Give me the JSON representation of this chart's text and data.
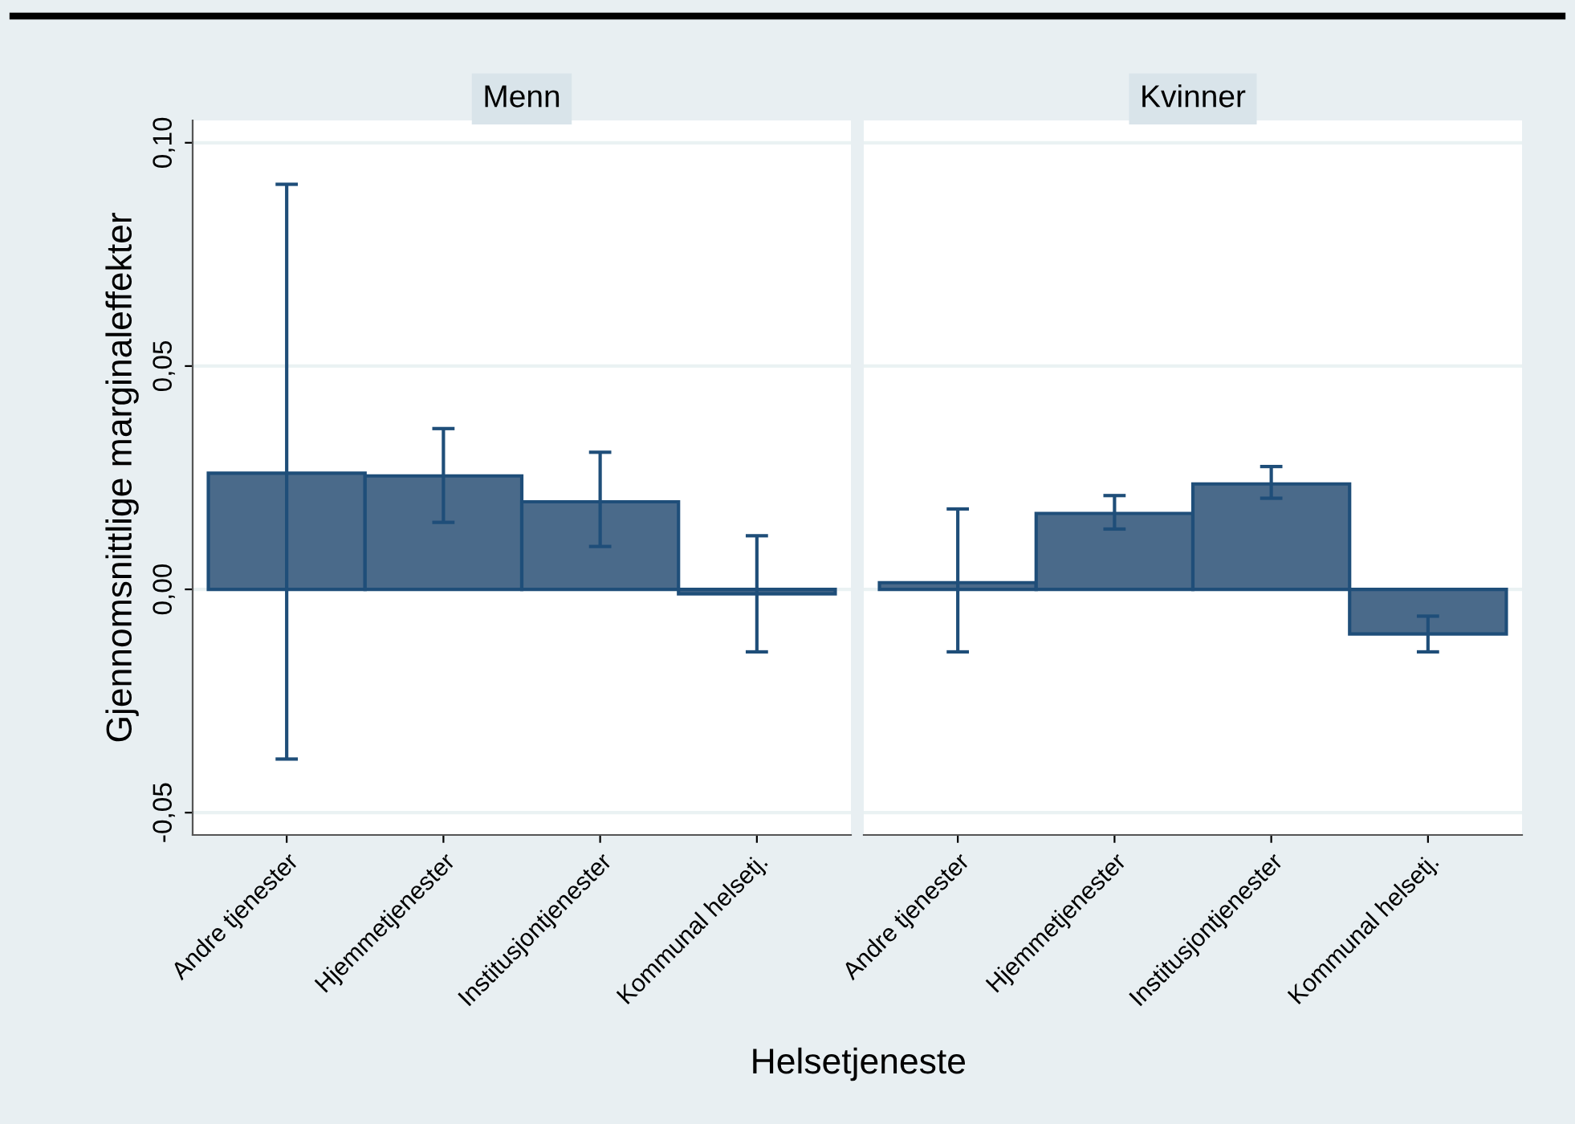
{
  "chart_data": [
    {
      "type": "bar",
      "title": "Menn",
      "ylabel": "Gjennomsnittlige marginaleffekter",
      "xlabel": "Helsetjeneste",
      "categories": [
        "Andre tjenester",
        "Hjemmetjenester",
        "Institusjontjenester",
        "Kommunal helsetj."
      ],
      "values": [
        0.026,
        0.0254,
        0.0196,
        -0.001
      ],
      "errors": [
        [
          -0.038,
          0.0907
        ],
        [
          0.015,
          0.036
        ],
        [
          0.0096,
          0.0307
        ],
        [
          -0.014,
          0.012
        ]
      ],
      "color": "#4a6a8a",
      "ylim": [
        -0.055,
        0.105
      ],
      "yticks": [
        {
          "value": -0.05,
          "label": "-0,05"
        },
        {
          "value": 0,
          "label": "0,00"
        },
        {
          "value": 0.05,
          "label": "0,05"
        },
        {
          "value": 0.1,
          "label": "0,10"
        }
      ],
      "grid": "y",
      "legend": false
    },
    {
      "type": "bar",
      "title": "Kvinner",
      "categories": [
        "Andre tjenester",
        "Hjemmetjenester",
        "Institusjontjenester",
        "Kommunal helsetj."
      ],
      "values": [
        0.0015,
        0.017,
        0.0236,
        -0.01
      ],
      "errors": [
        [
          -0.014,
          0.018
        ],
        [
          0.0135,
          0.021
        ],
        [
          0.0204,
          0.0275
        ],
        [
          -0.014,
          -0.006
        ]
      ],
      "color": "#4a6a8a",
      "ylim": [
        -0.055,
        0.105
      ],
      "yticks": [
        {
          "value": -0.05,
          "label": null
        },
        {
          "value": 0,
          "label": null
        },
        {
          "value": 0.05,
          "label": null
        },
        {
          "value": 0.1,
          "label": null
        }
      ],
      "grid": "y",
      "legend": false,
      "tick_labels": "x"
    }
  ]
}
